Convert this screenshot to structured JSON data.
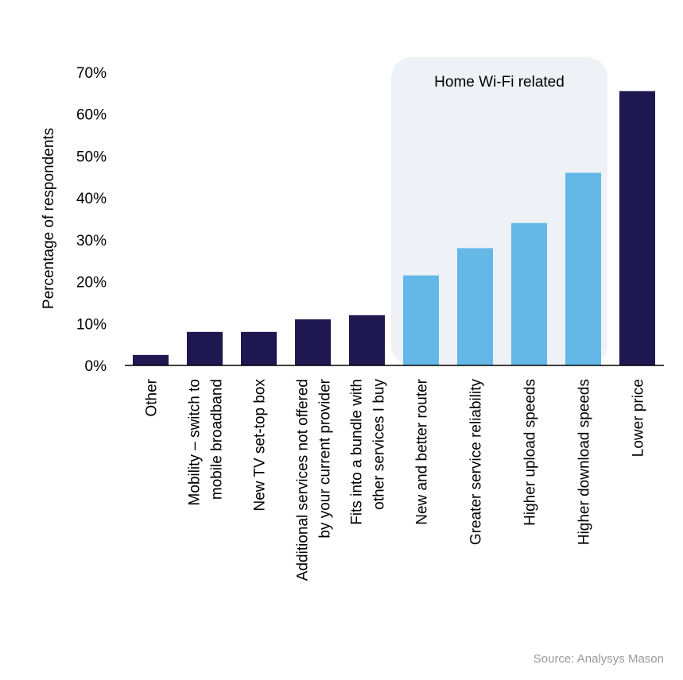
{
  "chart_data": {
    "type": "bar",
    "categories": [
      [
        "Other"
      ],
      [
        "Mobility – switch to",
        "mobile broadband"
      ],
      [
        "New TV set-top box"
      ],
      [
        "Additional services not offered",
        "by your current provider"
      ],
      [
        "Fits into a bundle with",
        "other services I buy"
      ],
      [
        "New and better router"
      ],
      [
        "Greater service reliability"
      ],
      [
        "Higher upload speeds"
      ],
      [
        "Higher download speeds"
      ],
      [
        "Lower price"
      ]
    ],
    "values": [
      2.5,
      8,
      8,
      11,
      12,
      21.5,
      28,
      34,
      46,
      65.5
    ],
    "bar_colors": [
      "#1e1750",
      "#1e1750",
      "#1e1750",
      "#1e1750",
      "#1e1750",
      "#63b8e8",
      "#63b8e8",
      "#63b8e8",
      "#63b8e8",
      "#1e1750"
    ],
    "ylabel": "Percentage of respondents",
    "xlabel": "",
    "ylim": [
      0,
      70
    ],
    "yticks": [
      "0%",
      "10%",
      "20%",
      "30%",
      "40%",
      "50%",
      "60%",
      "70%"
    ],
    "grid": false,
    "highlight": {
      "label": "Home Wi-Fi related",
      "from_index": 5,
      "to_index": 8,
      "color": "#eef1f5"
    },
    "source": "Source: Analysys Mason"
  }
}
